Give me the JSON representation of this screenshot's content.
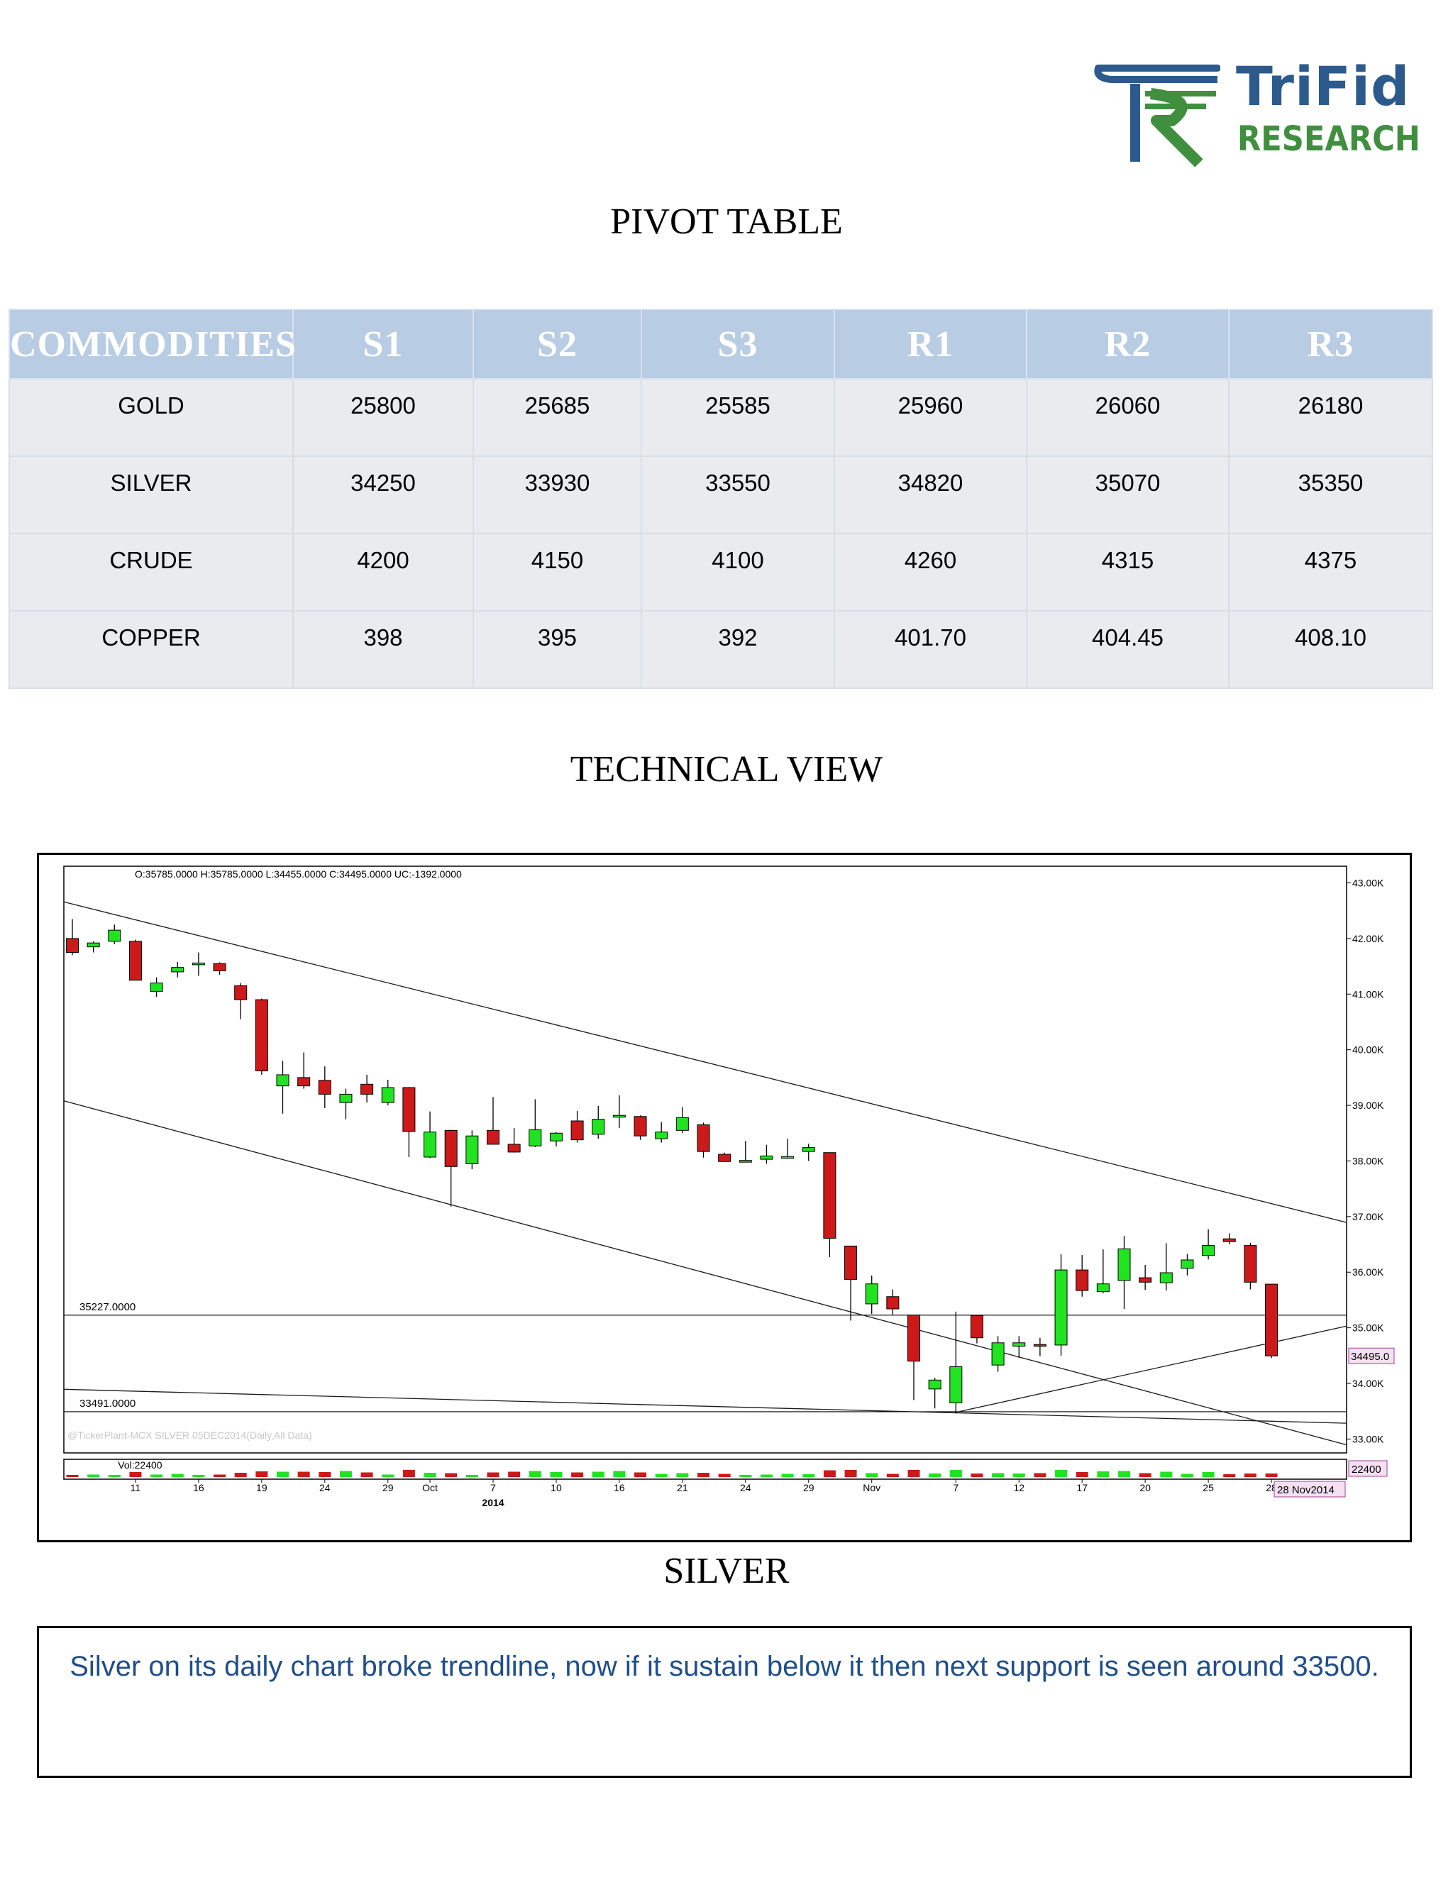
{
  "logo": {
    "name": "TriFid",
    "subtitle": "RESEARCH",
    "brand_color": "#2d5a8c",
    "accent_color": "#3f8f3f"
  },
  "pivot": {
    "title": "PIVOT TABLE",
    "columns": [
      "COMMODITIES",
      "S1",
      "S2",
      "S3",
      "R1",
      "R2",
      "R3"
    ],
    "rows": [
      [
        "GOLD",
        "25800",
        "25685",
        "25585",
        "25960",
        "26060",
        "26180"
      ],
      [
        "SILVER",
        "34250",
        "33930",
        "33550",
        "34820",
        "35070",
        "35350"
      ],
      [
        "CRUDE",
        "4200",
        "4150",
        "4100",
        "4260",
        "4315",
        "4375"
      ],
      [
        "COPPER",
        "398",
        "395",
        "392",
        "401.70",
        "404.45",
        "408.10"
      ]
    ],
    "header_color": "#b8cce4",
    "cell_color": "#e9ebef"
  },
  "technical": {
    "title": "TECHNICAL VIEW",
    "caption": "SILVER",
    "comment": "Silver on its daily chart broke trendline, now if it sustain below it then next support is seen around 33500."
  },
  "chart_data": {
    "type": "candlestick",
    "ohlc_header": "O:35785.0000  H:35785.0000  L:34455.0000  C:34495.0000  UC:-1392.0000",
    "watermark": "@TickerPlant-MCX SILVER 05DEC2014(Daily,All Data)",
    "y_axis_ticks": [
      "43.00K",
      "42.00K",
      "41.00K",
      "40.00K",
      "39.00K",
      "38.00K",
      "37.00K",
      "36.00K",
      "35.00K",
      "34.00K",
      "33.00K"
    ],
    "y_range": [
      32750,
      43300
    ],
    "last_price_label": "34495.0",
    "horizontal_lines": [
      {
        "label": "35227.0000",
        "value": 35227
      },
      {
        "label": "33491.0000",
        "value": 33491
      }
    ],
    "trendlines": [
      {
        "from": [
          0,
          42620
        ],
        "to": [
          62,
          36760
        ]
      },
      {
        "from": [
          0,
          39040
        ],
        "to": [
          62,
          32750
        ]
      },
      {
        "from": [
          0,
          33890
        ],
        "to": [
          62,
          33270
        ]
      },
      {
        "from": [
          42,
          33480
        ],
        "to": [
          62,
          35150
        ]
      }
    ],
    "x_tick_labels": [
      {
        "i": 3,
        "label": "11"
      },
      {
        "i": 6,
        "label": "16"
      },
      {
        "i": 9,
        "label": "19"
      },
      {
        "i": 12,
        "label": "24"
      },
      {
        "i": 15,
        "label": "29"
      },
      {
        "i": 17,
        "label": "Oct"
      },
      {
        "i": 20,
        "label": "7"
      },
      {
        "i": 23,
        "label": "10"
      },
      {
        "i": 26,
        "label": "16"
      },
      {
        "i": 29,
        "label": "21"
      },
      {
        "i": 32,
        "label": "24"
      },
      {
        "i": 35,
        "label": "29"
      },
      {
        "i": 38,
        "label": "Nov"
      },
      {
        "i": 42,
        "label": "7"
      },
      {
        "i": 45,
        "label": "12"
      },
      {
        "i": 48,
        "label": "17"
      },
      {
        "i": 51,
        "label": "20"
      },
      {
        "i": 54,
        "label": "25"
      },
      {
        "i": 57,
        "label": "28"
      }
    ],
    "x_year_label": "2014",
    "date_label": "28 Nov2014",
    "volume_label": "Vol:22400",
    "volume_value_label": "22400",
    "candles": [
      [
        42000,
        42350,
        41700,
        41750
      ],
      [
        41850,
        41950,
        41750,
        41920
      ],
      [
        41950,
        42250,
        41900,
        42150
      ],
      [
        41950,
        41980,
        41250,
        41250
      ],
      [
        41050,
        41300,
        40950,
        41200
      ],
      [
        41400,
        41580,
        41300,
        41480
      ],
      [
        41530,
        41750,
        41330,
        41560
      ],
      [
        41550,
        41570,
        41350,
        41420
      ],
      [
        41150,
        41200,
        40550,
        40900
      ],
      [
        40900,
        40920,
        39550,
        39620
      ],
      [
        39350,
        39800,
        38850,
        39550
      ],
      [
        39500,
        39950,
        39300,
        39350
      ],
      [
        39450,
        39700,
        38950,
        39200
      ],
      [
        39050,
        39300,
        38750,
        39200
      ],
      [
        39380,
        39550,
        39050,
        39200
      ],
      [
        39050,
        39460,
        39000,
        39320
      ],
      [
        39320,
        39330,
        38070,
        38530
      ],
      [
        38070,
        38890,
        38050,
        38520
      ],
      [
        38550,
        38560,
        37180,
        37900
      ],
      [
        37950,
        38550,
        37850,
        38450
      ],
      [
        38550,
        39150,
        38300,
        38300
      ],
      [
        38300,
        38590,
        38150,
        38160
      ],
      [
        38270,
        39110,
        38250,
        38560
      ],
      [
        38360,
        38520,
        38260,
        38500
      ],
      [
        38720,
        38900,
        38330,
        38380
      ],
      [
        38480,
        38990,
        38400,
        38750
      ],
      [
        38800,
        39180,
        38590,
        38820
      ],
      [
        38800,
        38820,
        38380,
        38450
      ],
      [
        38400,
        38700,
        38330,
        38520
      ],
      [
        38550,
        38970,
        38500,
        38780
      ],
      [
        38650,
        38690,
        38060,
        38170
      ],
      [
        38120,
        38150,
        37990,
        37990
      ],
      [
        38010,
        38360,
        37990,
        38010
      ],
      [
        38030,
        38290,
        37950,
        38090
      ],
      [
        38070,
        38400,
        38040,
        38080
      ],
      [
        38170,
        38310,
        38000,
        38240
      ],
      [
        38150,
        38150,
        36270,
        36610
      ],
      [
        36470,
        36470,
        35130,
        35870
      ],
      [
        35430,
        35940,
        35250,
        35790
      ],
      [
        35560,
        35690,
        35240,
        35340
      ],
      [
        35230,
        35230,
        33700,
        34400
      ],
      [
        33900,
        34100,
        33550,
        34060
      ],
      [
        33650,
        35290,
        33460,
        34300
      ],
      [
        35220,
        35220,
        34720,
        34820
      ],
      [
        34330,
        34850,
        34210,
        34730
      ],
      [
        34670,
        34850,
        34460,
        34730
      ],
      [
        34700,
        34820,
        34490,
        34680
      ],
      [
        34690,
        36320,
        34500,
        36040
      ],
      [
        36040,
        36310,
        35560,
        35670
      ],
      [
        35650,
        36410,
        35620,
        35790
      ],
      [
        35850,
        36650,
        35340,
        36420
      ],
      [
        35900,
        36130,
        35680,
        35820
      ],
      [
        35810,
        36520,
        35670,
        35990
      ],
      [
        36070,
        36330,
        35940,
        36220
      ],
      [
        36300,
        36770,
        36230,
        36480
      ],
      [
        36600,
        36700,
        36500,
        36550
      ],
      [
        36480,
        36530,
        35690,
        35820
      ],
      [
        35785,
        35785,
        34455,
        34495
      ]
    ],
    "volumes": [
      0.3,
      0.35,
      0.3,
      0.7,
      0.35,
      0.45,
      0.3,
      0.35,
      0.6,
      0.8,
      0.75,
      0.75,
      0.7,
      0.85,
      0.65,
      0.35,
      1.0,
      0.6,
      0.55,
      0.3,
      0.65,
      0.75,
      0.85,
      0.7,
      0.65,
      0.75,
      0.85,
      0.65,
      0.45,
      0.55,
      0.6,
      0.45,
      0.3,
      0.35,
      0.45,
      0.4,
      0.95,
      1.0,
      0.55,
      0.45,
      1.0,
      0.5,
      1.0,
      0.5,
      0.55,
      0.5,
      0.55,
      1.0,
      0.7,
      0.8,
      0.85,
      0.55,
      0.75,
      0.45,
      0.7,
      0.4,
      0.5,
      0.5
    ],
    "up_color": "#22e322",
    "down_color": "#cc1a1a"
  }
}
